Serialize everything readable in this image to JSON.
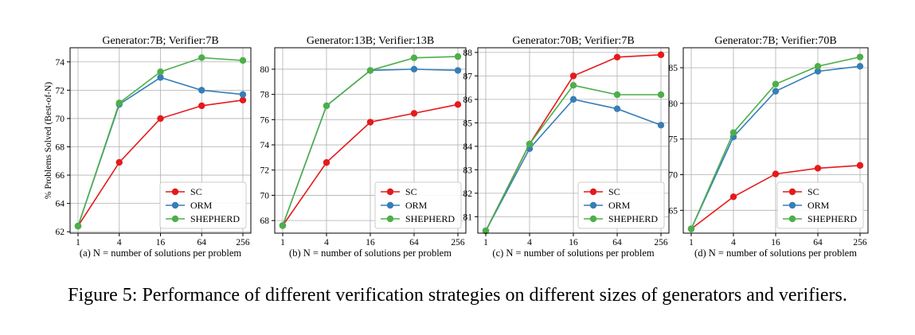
{
  "caption": "Figure 5: Performance of different verification strategies on different sizes of generators and verifiers.",
  "colors": {
    "SC": "#e41a1c",
    "ORM": "#377eb8",
    "SHEPHERD": "#4daf4a",
    "grid": "#b0b0b0",
    "axis": "#000000"
  },
  "chart_data": [
    {
      "type": "line",
      "title": "Generator:7B; Verifier:7B",
      "xlabel": "(a) N = number of solutions per problem",
      "ylabel": "% Problems Solved (Best-of-N)",
      "categories": [
        "1",
        "4",
        "16",
        "64",
        "256"
      ],
      "ylim": [
        61.9,
        75.0
      ],
      "yticks": [
        62,
        64,
        66,
        68,
        70,
        72,
        74
      ],
      "grid": true,
      "legend": "lower-right",
      "series": [
        {
          "name": "SC",
          "values": [
            62.4,
            66.9,
            70.0,
            70.9,
            71.3
          ]
        },
        {
          "name": "ORM",
          "values": [
            62.4,
            71.0,
            72.9,
            72.0,
            71.7
          ]
        },
        {
          "name": "SHEPHERD",
          "values": [
            62.4,
            71.1,
            73.3,
            74.3,
            74.1
          ]
        }
      ]
    },
    {
      "type": "line",
      "title": "Generator:13B; Verifier:13B",
      "xlabel": "(b) N = number of solutions per problem",
      "ylabel": "",
      "categories": [
        "1",
        "4",
        "16",
        "64",
        "256"
      ],
      "ylim": [
        67.0,
        81.7
      ],
      "yticks": [
        68,
        70,
        72,
        74,
        76,
        78,
        80
      ],
      "grid": true,
      "legend": "lower-right",
      "series": [
        {
          "name": "SC",
          "values": [
            67.6,
            72.6,
            75.8,
            76.5,
            77.2
          ]
        },
        {
          "name": "ORM",
          "values": [
            67.6,
            77.1,
            79.9,
            80.0,
            79.9
          ]
        },
        {
          "name": "SHEPHERD",
          "values": [
            67.6,
            77.1,
            79.9,
            80.9,
            81.0
          ]
        }
      ]
    },
    {
      "type": "line",
      "title": "Generator:70B; Verifier:7B",
      "xlabel": "(c) N = number of solutions per problem",
      "ylabel": "",
      "categories": [
        "1",
        "4",
        "16",
        "64",
        "256"
      ],
      "ylim": [
        80.3,
        88.2
      ],
      "yticks": [
        81,
        82,
        83,
        84,
        85,
        86,
        87,
        88
      ],
      "grid": true,
      "legend": "lower-right",
      "series": [
        {
          "name": "SC",
          "values": [
            80.4,
            84.1,
            87.0,
            87.8,
            87.9
          ]
        },
        {
          "name": "ORM",
          "values": [
            80.4,
            83.9,
            86.0,
            85.6,
            84.9
          ]
        },
        {
          "name": "SHEPHERD",
          "values": [
            80.4,
            84.1,
            86.6,
            86.2,
            86.2
          ]
        }
      ]
    },
    {
      "type": "line",
      "title": "Generator:7B; Verifier:70B",
      "xlabel": "(d) N = number of solutions per problem",
      "ylabel": "",
      "categories": [
        "1",
        "4",
        "16",
        "64",
        "256"
      ],
      "ylim": [
        61.8,
        87.8
      ],
      "yticks": [
        65,
        70,
        75,
        80,
        85
      ],
      "grid": true,
      "legend": "lower-right",
      "series": [
        {
          "name": "SC",
          "values": [
            62.4,
            66.9,
            70.1,
            70.9,
            71.3
          ]
        },
        {
          "name": "ORM",
          "values": [
            62.4,
            75.3,
            81.7,
            84.5,
            85.2
          ]
        },
        {
          "name": "SHEPHERD",
          "values": [
            62.4,
            75.9,
            82.7,
            85.2,
            86.5
          ]
        }
      ]
    }
  ]
}
